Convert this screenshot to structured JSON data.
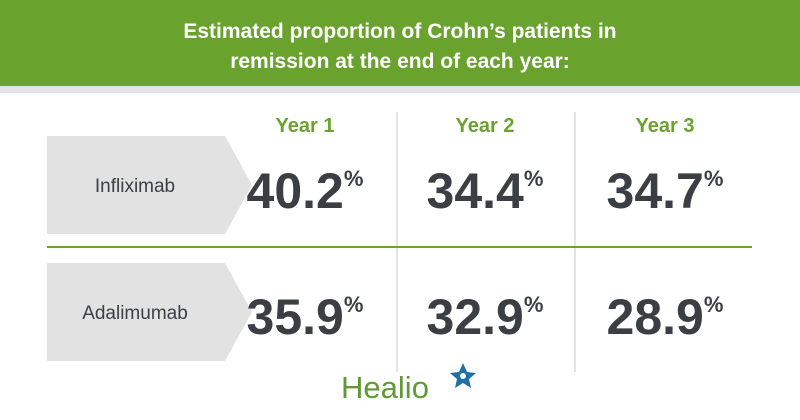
{
  "header": {
    "title_lines": [
      "Estimated proportion of Crohn’s patients in",
      "remission at the end of each year:"
    ]
  },
  "table": {
    "columns": [
      "Year 1",
      "Year 2",
      "Year 3"
    ],
    "unit": "%",
    "rows": [
      {
        "label": "Infliximab",
        "cells": [
          "40.2",
          "34.4",
          "34.7"
        ]
      },
      {
        "label": "Adalimumab",
        "cells": [
          "35.9",
          "32.9",
          "28.9"
        ]
      }
    ]
  },
  "footer": {
    "logo": "Healio"
  }
}
